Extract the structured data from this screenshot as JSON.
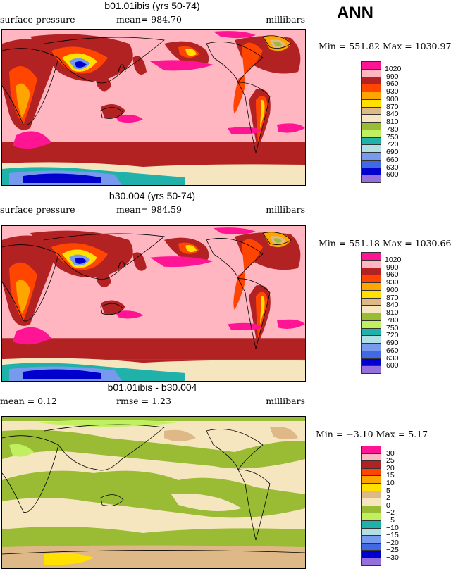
{
  "season": "ANN",
  "pressure_colors": [
    "#ff1493",
    "#ffb6c1",
    "#b22222",
    "#ff4500",
    "#ffa500",
    "#ffe000",
    "#deb887",
    "#f5e6c0",
    "#9abb34",
    "#c0ef60",
    "#20b2aa",
    "#b0e0e6",
    "#7799ee",
    "#4169e1",
    "#0000cd",
    "#9370db"
  ],
  "panels": [
    {
      "title": "b01.01ibis (yrs 50-74)",
      "left": "surface pressure",
      "mean": "mean= 984.70",
      "units": "millibars",
      "minmax": "Min = 551.82 Max = 1030.97",
      "levels": [
        "1020",
        "990",
        "960",
        "930",
        "900",
        "870",
        "840",
        "810",
        "780",
        "750",
        "720",
        "690",
        "660",
        "630",
        "600"
      ]
    },
    {
      "title": "b30.004 (yrs 50-74)",
      "left": "surface pressure",
      "mean": "mean= 984.59",
      "units": "millibars",
      "minmax": "Min = 551.18 Max = 1030.66",
      "levels": [
        "1020",
        "990",
        "960",
        "930",
        "900",
        "870",
        "840",
        "810",
        "780",
        "750",
        "720",
        "690",
        "660",
        "630",
        "600"
      ]
    },
    {
      "title": "b01.01ibis - b30.004",
      "left": "mean =    0.12",
      "mean": "rmse =    1.23",
      "units": "millibars",
      "minmax": "Min =  −3.10 Max =    5.17",
      "levels": [
        "30",
        "25",
        "20",
        "15",
        "10",
        "5",
        "2",
        "0",
        "−2",
        "−5",
        "−10",
        "−15",
        "−20",
        "−25",
        "−30"
      ]
    }
  ]
}
